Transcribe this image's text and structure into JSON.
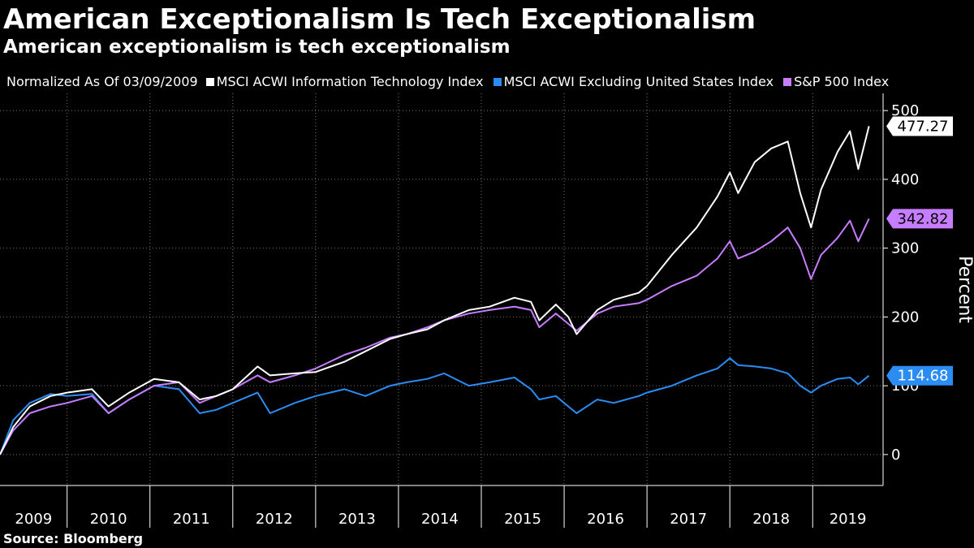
{
  "header": {
    "title": "American Exceptionalism Is Tech Exceptionalism",
    "subtitle": "American exceptionalism is tech exceptionalism"
  },
  "legend": {
    "normalized_label": "Normalized As Of 03/09/2009"
  },
  "footer": {
    "source": "Source: Bloomberg"
  },
  "chart_data": {
    "type": "line",
    "title": "American Exceptionalism Is Tech Exceptionalism",
    "subtitle": "American exceptionalism is tech exceptionalism",
    "xlabel": "",
    "ylabel": "Percent",
    "ylim": [
      -45,
      525
    ],
    "xlim": [
      2009.19,
      2019.85
    ],
    "yticks": [
      0,
      100,
      200,
      300,
      400,
      500
    ],
    "year_labels": [
      "2009",
      "2010",
      "2011",
      "2012",
      "2013",
      "2014",
      "2015",
      "2016",
      "2017",
      "2018",
      "2019"
    ],
    "grid": true,
    "legend_position": "top",
    "series": [
      {
        "name": "MSCI ACWI Information Technology Index",
        "color": "#ffffff",
        "last_value": 477.27,
        "last_label": "477.27",
        "points": [
          [
            2009.19,
            0
          ],
          [
            2009.35,
            40
          ],
          [
            2009.55,
            70
          ],
          [
            2009.8,
            85
          ],
          [
            2010.0,
            90
          ],
          [
            2010.3,
            95
          ],
          [
            2010.5,
            70
          ],
          [
            2010.75,
            90
          ],
          [
            2011.05,
            110
          ],
          [
            2011.35,
            105
          ],
          [
            2011.6,
            80
          ],
          [
            2011.8,
            85
          ],
          [
            2012.0,
            95
          ],
          [
            2012.3,
            128
          ],
          [
            2012.45,
            115
          ],
          [
            2012.75,
            118
          ],
          [
            2013.0,
            120
          ],
          [
            2013.35,
            135
          ],
          [
            2013.6,
            150
          ],
          [
            2013.9,
            168
          ],
          [
            2014.1,
            175
          ],
          [
            2014.35,
            182
          ],
          [
            2014.55,
            195
          ],
          [
            2014.85,
            210
          ],
          [
            2015.1,
            215
          ],
          [
            2015.4,
            228
          ],
          [
            2015.6,
            222
          ],
          [
            2015.7,
            195
          ],
          [
            2015.9,
            218
          ],
          [
            2016.05,
            200
          ],
          [
            2016.15,
            175
          ],
          [
            2016.4,
            210
          ],
          [
            2016.6,
            225
          ],
          [
            2016.9,
            235
          ],
          [
            2017.0,
            245
          ],
          [
            2017.3,
            290
          ],
          [
            2017.6,
            330
          ],
          [
            2017.85,
            375
          ],
          [
            2018.0,
            410
          ],
          [
            2018.1,
            380
          ],
          [
            2018.3,
            425
          ],
          [
            2018.5,
            445
          ],
          [
            2018.7,
            455
          ],
          [
            2018.85,
            380
          ],
          [
            2018.98,
            330
          ],
          [
            2019.1,
            385
          ],
          [
            2019.3,
            440
          ],
          [
            2019.45,
            470
          ],
          [
            2019.55,
            415
          ],
          [
            2019.68,
            477.27
          ]
        ]
      },
      {
        "name": "MSCI ACWI Excluding United States Index",
        "color": "#2b8cf3",
        "last_value": 114.68,
        "last_label": "114.68",
        "points": [
          [
            2009.19,
            0
          ],
          [
            2009.35,
            50
          ],
          [
            2009.55,
            75
          ],
          [
            2009.8,
            88
          ],
          [
            2010.0,
            85
          ],
          [
            2010.3,
            88
          ],
          [
            2010.5,
            60
          ],
          [
            2010.75,
            80
          ],
          [
            2011.05,
            100
          ],
          [
            2011.35,
            95
          ],
          [
            2011.6,
            60
          ],
          [
            2011.8,
            65
          ],
          [
            2012.0,
            75
          ],
          [
            2012.3,
            90
          ],
          [
            2012.45,
            60
          ],
          [
            2012.75,
            75
          ],
          [
            2013.0,
            85
          ],
          [
            2013.35,
            95
          ],
          [
            2013.6,
            85
          ],
          [
            2013.9,
            100
          ],
          [
            2014.1,
            105
          ],
          [
            2014.35,
            110
          ],
          [
            2014.55,
            118
          ],
          [
            2014.85,
            100
          ],
          [
            2015.1,
            105
          ],
          [
            2015.4,
            112
          ],
          [
            2015.6,
            95
          ],
          [
            2015.7,
            80
          ],
          [
            2015.9,
            85
          ],
          [
            2016.05,
            70
          ],
          [
            2016.15,
            60
          ],
          [
            2016.4,
            80
          ],
          [
            2016.6,
            75
          ],
          [
            2016.9,
            85
          ],
          [
            2017.0,
            90
          ],
          [
            2017.3,
            100
          ],
          [
            2017.6,
            115
          ],
          [
            2017.85,
            125
          ],
          [
            2018.0,
            140
          ],
          [
            2018.1,
            130
          ],
          [
            2018.3,
            128
          ],
          [
            2018.5,
            125
          ],
          [
            2018.7,
            118
          ],
          [
            2018.85,
            100
          ],
          [
            2018.98,
            90
          ],
          [
            2019.1,
            100
          ],
          [
            2019.3,
            110
          ],
          [
            2019.45,
            112
          ],
          [
            2019.55,
            102
          ],
          [
            2019.68,
            114.68
          ]
        ]
      },
      {
        "name": "S&P 500 Index",
        "color": "#c77dff",
        "last_value": 342.82,
        "last_label": "342.82",
        "points": [
          [
            2009.19,
            0
          ],
          [
            2009.35,
            35
          ],
          [
            2009.55,
            60
          ],
          [
            2009.8,
            70
          ],
          [
            2010.0,
            75
          ],
          [
            2010.3,
            85
          ],
          [
            2010.5,
            60
          ],
          [
            2010.75,
            80
          ],
          [
            2011.05,
            100
          ],
          [
            2011.35,
            105
          ],
          [
            2011.6,
            75
          ],
          [
            2011.8,
            85
          ],
          [
            2012.0,
            95
          ],
          [
            2012.3,
            115
          ],
          [
            2012.45,
            105
          ],
          [
            2012.75,
            115
          ],
          [
            2013.0,
            125
          ],
          [
            2013.35,
            145
          ],
          [
            2013.6,
            155
          ],
          [
            2013.9,
            170
          ],
          [
            2014.1,
            175
          ],
          [
            2014.35,
            185
          ],
          [
            2014.55,
            195
          ],
          [
            2014.85,
            205
          ],
          [
            2015.1,
            210
          ],
          [
            2015.4,
            215
          ],
          [
            2015.6,
            210
          ],
          [
            2015.7,
            185
          ],
          [
            2015.9,
            205
          ],
          [
            2016.05,
            190
          ],
          [
            2016.15,
            180
          ],
          [
            2016.4,
            205
          ],
          [
            2016.6,
            215
          ],
          [
            2016.9,
            220
          ],
          [
            2017.0,
            225
          ],
          [
            2017.3,
            245
          ],
          [
            2017.6,
            260
          ],
          [
            2017.85,
            285
          ],
          [
            2018.0,
            310
          ],
          [
            2018.1,
            285
          ],
          [
            2018.3,
            295
          ],
          [
            2018.5,
            310
          ],
          [
            2018.7,
            330
          ],
          [
            2018.85,
            300
          ],
          [
            2018.98,
            255
          ],
          [
            2019.1,
            290
          ],
          [
            2019.3,
            315
          ],
          [
            2019.45,
            340
          ],
          [
            2019.55,
            310
          ],
          [
            2019.68,
            342.82
          ]
        ]
      }
    ]
  }
}
